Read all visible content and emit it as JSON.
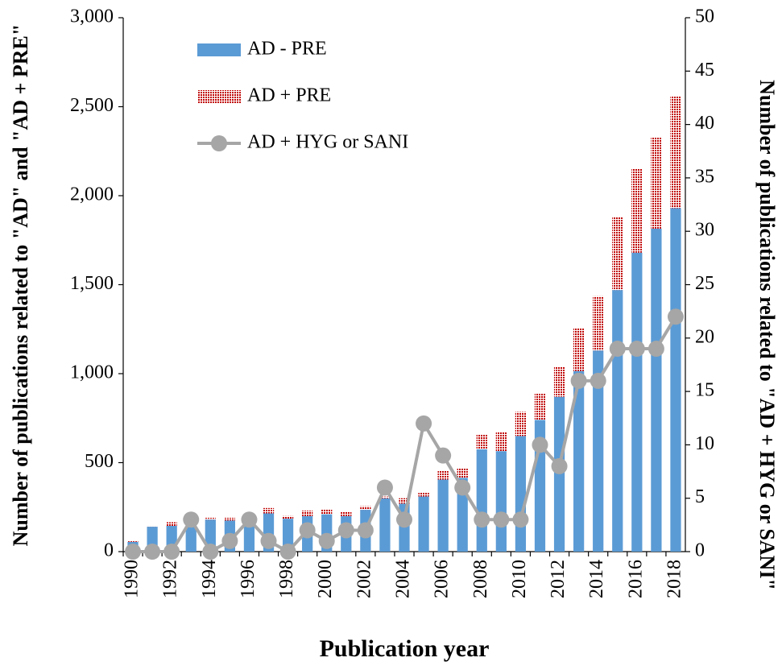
{
  "chart_data": {
    "type": "bar",
    "xlabel": "Publication year",
    "ylabel": "Number of publications related to \"AD\" and \"AD + PRE\"",
    "y2label": "Number of publications related to \"AD + HYG or SANI\"",
    "categories": [
      "1990",
      null,
      "1992",
      null,
      "1994",
      null,
      "1996",
      null,
      "1998",
      null,
      "2000",
      null,
      "2002",
      null,
      "2004",
      null,
      "2006",
      null,
      "2008",
      null,
      "2010",
      null,
      "2012",
      null,
      "2014",
      null,
      "2016",
      null,
      "2018"
    ],
    "stacked": true,
    "legend": "upper left",
    "series": [
      {
        "name": "AD - PRE",
        "type": "bar",
        "color": "#5b9bd5",
        "values": [
          55,
          140,
          145,
          160,
          180,
          175,
          170,
          215,
          185,
          200,
          210,
          200,
          235,
          300,
          270,
          310,
          405,
          415,
          575,
          565,
          650,
          740,
          870,
          1015,
          1130,
          1470,
          1680,
          1815,
          1930
        ]
      },
      {
        "name": "AD + PRE",
        "type": "bar",
        "color": "#c00000",
        "pattern": "dots",
        "values": [
          5,
          5,
          20,
          10,
          10,
          15,
          25,
          30,
          15,
          30,
          30,
          25,
          20,
          10,
          30,
          25,
          50,
          55,
          85,
          105,
          135,
          150,
          170,
          240,
          305,
          410,
          470,
          515,
          630
        ]
      },
      {
        "name": "AD + HYG or SANI",
        "type": "line",
        "axis": "y2",
        "color": "#a6a6a6",
        "values": [
          0,
          0,
          0,
          3,
          0,
          1,
          3,
          1,
          0,
          2,
          1,
          2,
          2,
          6,
          3,
          12,
          9,
          6,
          3,
          3,
          3,
          10,
          8,
          16,
          16,
          19,
          19,
          19,
          22
        ]
      }
    ],
    "ylim": [
      0,
      3000
    ],
    "yticks": [
      0,
      500,
      {
        "value": 1000,
        "label": "1,000"
      },
      {
        "value": 1500,
        "label": "1,500"
      },
      {
        "value": 2000,
        "label": "2,000"
      },
      {
        "value": 2500,
        "label": "2,500"
      },
      {
        "value": 3000,
        "label": "3,000"
      }
    ],
    "y2lim": [
      0,
      50
    ],
    "y2ticks": [
      0,
      5,
      10,
      15,
      20,
      25,
      30,
      35,
      40,
      45,
      50
    ],
    "grid": false
  }
}
